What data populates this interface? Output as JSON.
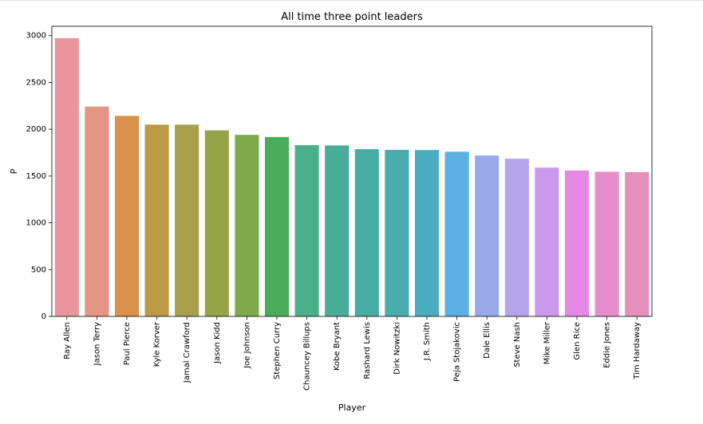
{
  "chart_data": {
    "type": "bar",
    "title": "All time three point leaders",
    "xlabel": "Player",
    "ylabel": "P",
    "categories": [
      "Ray Allen",
      "Jason Terry",
      "Paul Pierce",
      "Kyle Korver",
      "Jamal Crawford",
      "Jason Kidd",
      "Joe Johnson",
      "Stephen Curry",
      "Chauncey Billups",
      "Kobe Bryant",
      "Rashard Lewis",
      "Dirk Nowitzki",
      "J.R. Smith",
      "Peja Stojakovic",
      "Dale Ellis",
      "Steve Nash",
      "Mike Miller",
      "Glen Rice",
      "Eddie Jones",
      "Tim Hardaway"
    ],
    "values": [
      2973,
      2242,
      2143,
      2049,
      2049,
      1988,
      1940,
      1917,
      1830,
      1827,
      1787,
      1780,
      1778,
      1760,
      1719,
      1685,
      1590,
      1559,
      1546,
      1542
    ],
    "colors": [
      "#e8959c",
      "#e49583",
      "#d9914b",
      "#bd9a48",
      "#a8a04a",
      "#96a448",
      "#7eaa4a",
      "#4aad5c",
      "#4ab08c",
      "#48ad98",
      "#47ada3",
      "#49acae",
      "#4aadbf",
      "#5bb1e3",
      "#98a9e8",
      "#b5a3ec",
      "#cb98ec",
      "#e688e6",
      "#e68dcc",
      "#e68fbc"
    ],
    "ylim": [
      0,
      3100
    ],
    "yticks": [
      0,
      500,
      1000,
      1500,
      2000,
      2500,
      3000
    ],
    "grid": false,
    "legend": "none"
  }
}
